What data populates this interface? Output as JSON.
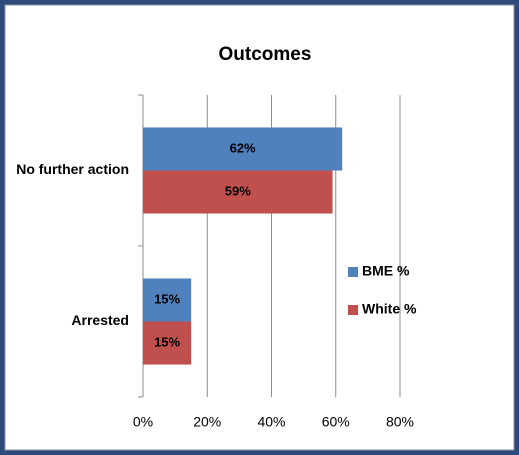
{
  "chart_data": {
    "type": "bar",
    "orientation": "horizontal",
    "title": "Outcomes",
    "categories": [
      "No further action",
      "Arrested"
    ],
    "series": [
      {
        "name": "BME %",
        "color": "#4f81bd",
        "values": [
          62,
          15
        ],
        "value_labels": [
          "62%",
          "15%"
        ]
      },
      {
        "name": "White %",
        "color": "#c0504d",
        "values": [
          59,
          15
        ],
        "value_labels": [
          "59%",
          "15%"
        ]
      }
    ],
    "xlim": [
      0,
      80
    ],
    "xticks": [
      {
        "value": 0,
        "label": "0%"
      },
      {
        "value": 20,
        "label": "20%"
      },
      {
        "value": 40,
        "label": "40%"
      },
      {
        "value": 60,
        "label": "60%"
      },
      {
        "value": 80,
        "label": "80%"
      }
    ],
    "grid": true,
    "legend": "right"
  }
}
